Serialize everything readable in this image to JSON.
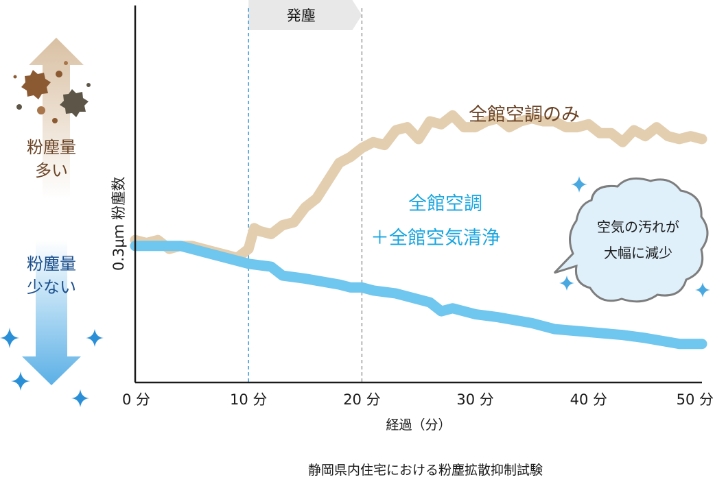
{
  "chart_data": {
    "type": "line",
    "title": "静岡県内住宅における粉塵拡散抑制試験",
    "xlabel": "経過（分）",
    "ylabel": "0.3μｍ 粉塵数",
    "xlim": [
      0,
      50
    ],
    "x_ticks": [
      {
        "value": 0,
        "label": "0 分"
      },
      {
        "value": 10,
        "label": "10 分"
      },
      {
        "value": 20,
        "label": "20 分"
      },
      {
        "value": 30,
        "label": "30 分"
      },
      {
        "value": 40,
        "label": "40 分"
      },
      {
        "value": 50,
        "label": "50 分"
      }
    ],
    "grid": false,
    "phase": {
      "label": "発塵",
      "start": 10,
      "end": 20
    },
    "series": [
      {
        "name": "全館空調のみ",
        "color": "#e3ceaf",
        "points": [
          [
            0,
            48
          ],
          [
            1,
            47
          ],
          [
            2,
            48
          ],
          [
            3,
            45
          ],
          [
            4,
            46
          ],
          [
            5,
            46
          ],
          [
            6,
            45
          ],
          [
            7,
            44
          ],
          [
            8,
            43
          ],
          [
            9,
            42
          ],
          [
            10,
            45
          ],
          [
            10.5,
            52
          ],
          [
            11,
            51
          ],
          [
            12,
            50
          ],
          [
            13,
            53
          ],
          [
            14,
            54
          ],
          [
            15,
            59
          ],
          [
            16,
            62
          ],
          [
            17,
            68
          ],
          [
            18,
            74
          ],
          [
            19,
            76
          ],
          [
            20,
            79
          ],
          [
            21,
            81
          ],
          [
            22,
            80
          ],
          [
            23,
            85
          ],
          [
            24,
            86
          ],
          [
            25,
            82
          ],
          [
            26,
            88
          ],
          [
            27,
            87
          ],
          [
            28,
            90
          ],
          [
            29,
            86
          ],
          [
            30,
            86
          ],
          [
            31,
            88
          ],
          [
            32,
            89
          ],
          [
            33,
            86
          ],
          [
            34,
            88
          ],
          [
            35,
            89
          ],
          [
            36,
            88
          ],
          [
            37,
            88
          ],
          [
            38,
            86
          ],
          [
            39,
            86
          ],
          [
            40,
            87
          ],
          [
            41,
            84
          ],
          [
            42,
            84
          ],
          [
            43,
            81
          ],
          [
            44,
            85
          ],
          [
            45,
            83
          ],
          [
            46,
            86
          ],
          [
            47,
            83
          ],
          [
            48,
            82
          ],
          [
            49,
            83
          ],
          [
            50,
            82
          ]
        ]
      },
      {
        "name": "全館空調＋全館空気清浄",
        "color": "#6fc6ee",
        "points": [
          [
            0,
            46
          ],
          [
            2,
            46
          ],
          [
            4,
            46
          ],
          [
            6,
            44
          ],
          [
            8,
            42
          ],
          [
            10,
            40
          ],
          [
            12,
            39
          ],
          [
            13,
            36
          ],
          [
            15,
            35
          ],
          [
            18,
            33
          ],
          [
            19,
            32
          ],
          [
            20,
            32
          ],
          [
            21,
            31
          ],
          [
            23,
            30
          ],
          [
            26,
            27
          ],
          [
            27,
            24
          ],
          [
            28,
            25
          ],
          [
            30,
            23
          ],
          [
            32,
            22
          ],
          [
            35,
            20
          ],
          [
            37,
            18
          ],
          [
            40,
            17
          ],
          [
            43,
            16
          ],
          [
            45,
            15
          ],
          [
            48,
            13
          ],
          [
            50,
            13
          ]
        ]
      }
    ]
  },
  "labels": {
    "more_dust": [
      "粉塵量",
      "多い"
    ],
    "less_dust": [
      "粉塵量",
      "少ない"
    ],
    "series_a_label": "全館空調のみ",
    "series_b_label": [
      "全館空調",
      "＋全館空気清浄"
    ],
    "bubble": [
      "空気の汚れが",
      "大幅に減少"
    ]
  },
  "colors": {
    "brown_text": "#6b4426",
    "blue_text": "#1aa6e0",
    "dark_blue_text": "#1a4e8c",
    "axis": "#1a1a1a",
    "phase_bg": "#e8e8e8"
  }
}
